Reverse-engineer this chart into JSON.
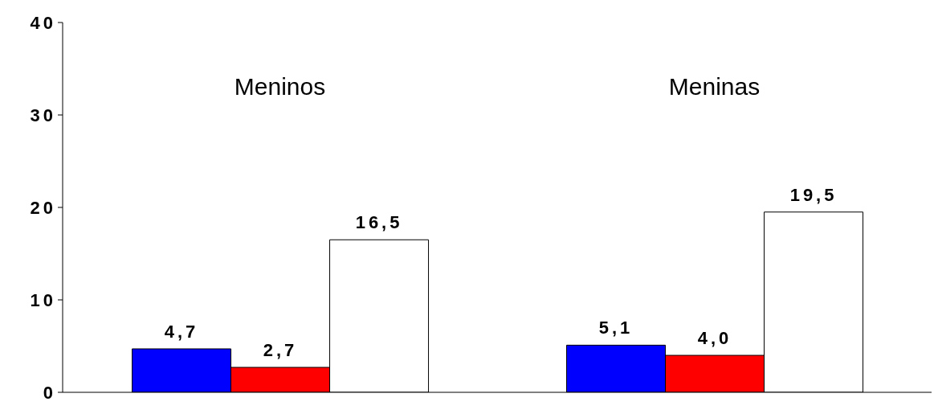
{
  "chart_data": {
    "type": "bar",
    "categories": [
      "Meninos",
      "Meninas"
    ],
    "series": [
      {
        "color": "#0000ff",
        "values": [
          4.7,
          5.1
        ],
        "value_labels": [
          "4,7",
          "5,1"
        ]
      },
      {
        "color": "#ff0000",
        "values": [
          2.7,
          4.0
        ],
        "value_labels": [
          "2,7",
          "4,0"
        ]
      },
      {
        "color": "#ffffff",
        "values": [
          16.5,
          19.5
        ],
        "value_labels": [
          "16,5",
          "19,5"
        ]
      }
    ],
    "ylim": [
      0,
      40
    ],
    "yticks": [
      0,
      10,
      20,
      30,
      40
    ],
    "grid": false,
    "legend": false
  }
}
